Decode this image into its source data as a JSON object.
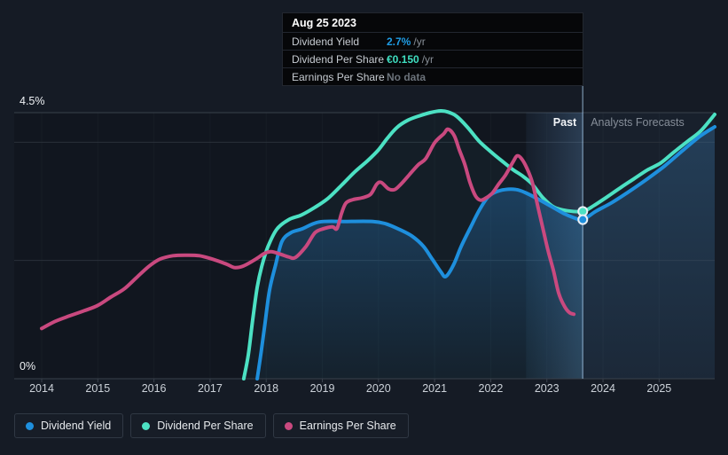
{
  "tooltip": {
    "date": "Aug 25 2023",
    "rows": [
      {
        "label": "Dividend Yield",
        "value": "2.7%",
        "suffix": "/yr",
        "value_color": "#1f9ce4"
      },
      {
        "label": "Dividend Per Share",
        "value": "€0.150",
        "suffix": "/yr",
        "value_color": "#3fdfc1"
      },
      {
        "label": "Earnings Per Share",
        "value": "No data",
        "suffix": "",
        "value_color": "#6b727a"
      }
    ]
  },
  "chart": {
    "past_label": "Past",
    "forecast_label": "Analysts Forecasts",
    "y_axis_top_label": "4.5%",
    "y_axis_bottom_label": "0%"
  },
  "legend": {
    "items": [
      {
        "label": "Dividend Yield"
      },
      {
        "label": "Dividend Per Share"
      },
      {
        "label": "Earnings Per Share"
      }
    ]
  },
  "colors": {
    "background": "#151b25",
    "plot_background": "#11161f",
    "forecast_background": "#18202c",
    "dividend_yield": "#1e8fdd",
    "dividend_per_share": "#4ce1c3",
    "earnings_per_share": "#c9497f",
    "gridline_strong": "#39414b",
    "gridline": "#2a303a",
    "axis_text": "#ccd2d9",
    "forecast_text": "#868e99"
  },
  "chart_data": {
    "type": "line",
    "title": "Dividend history and forecast with earnings per share",
    "x_ticks": [
      2014,
      2015,
      2016,
      2017,
      2018,
      2019,
      2020,
      2021,
      2022,
      2023,
      2024,
      2025
    ],
    "x_range": [
      2013.51,
      2025.99
    ],
    "y_axis": {
      "min": 0,
      "max": 4.5,
      "top_label": "4.5%",
      "bottom_label": "0%",
      "gridlines_pct": [
        4.5,
        4.0,
        2.0
      ]
    },
    "past_forecast_divider_year": 2023.64,
    "highlight_band": {
      "from_year": 2022.63,
      "to_year": 2023.64
    },
    "marker": {
      "date": "Aug 25 2023",
      "year": 2023.64,
      "dividend_yield_pct": 2.69,
      "dividend_per_share_eur": 0.15,
      "dividend_per_share_plot_pct": 2.83,
      "earnings_per_share": "No data"
    },
    "series": [
      {
        "name": "Dividend Yield",
        "color": "#1e8fdd",
        "unit": "percent",
        "points": [
          [
            2017.84,
            0
          ],
          [
            2017.91,
            0.45
          ],
          [
            2017.98,
            0.95
          ],
          [
            2018.06,
            1.5
          ],
          [
            2018.16,
            1.9
          ],
          [
            2018.28,
            2.32
          ],
          [
            2018.44,
            2.47
          ],
          [
            2018.63,
            2.53
          ],
          [
            2018.94,
            2.65
          ],
          [
            2019.4,
            2.66
          ],
          [
            2019.9,
            2.66
          ],
          [
            2020.13,
            2.62
          ],
          [
            2020.36,
            2.53
          ],
          [
            2020.6,
            2.41
          ],
          [
            2020.8,
            2.24
          ],
          [
            2020.96,
            2.02
          ],
          [
            2021.11,
            1.81
          ],
          [
            2021.2,
            1.73
          ],
          [
            2021.34,
            1.93
          ],
          [
            2021.47,
            2.23
          ],
          [
            2021.63,
            2.54
          ],
          [
            2021.79,
            2.84
          ],
          [
            2021.94,
            3.06
          ],
          [
            2022.07,
            3.15
          ],
          [
            2022.26,
            3.2
          ],
          [
            2022.45,
            3.2
          ],
          [
            2022.61,
            3.15
          ],
          [
            2022.82,
            3.05
          ],
          [
            2023.05,
            2.93
          ],
          [
            2023.29,
            2.8
          ],
          [
            2023.49,
            2.72
          ],
          [
            2023.64,
            2.69
          ],
          [
            2023.87,
            2.83
          ],
          [
            2024.16,
            2.98
          ],
          [
            2024.47,
            3.17
          ],
          [
            2024.79,
            3.38
          ],
          [
            2025.1,
            3.6
          ],
          [
            2025.42,
            3.86
          ],
          [
            2025.74,
            4.11
          ],
          [
            2025.99,
            4.26
          ]
        ]
      },
      {
        "name": "Dividend Per Share",
        "color": "#4ce1c3",
        "unit": "plot_percent_scale",
        "points": [
          [
            2017.6,
            0
          ],
          [
            2017.68,
            0.4
          ],
          [
            2017.76,
            1.0
          ],
          [
            2017.84,
            1.55
          ],
          [
            2017.92,
            1.9
          ],
          [
            2018.03,
            2.23
          ],
          [
            2018.19,
            2.53
          ],
          [
            2018.4,
            2.69
          ],
          [
            2018.63,
            2.77
          ],
          [
            2018.87,
            2.9
          ],
          [
            2019.1,
            3.05
          ],
          [
            2019.34,
            3.27
          ],
          [
            2019.58,
            3.5
          ],
          [
            2019.81,
            3.69
          ],
          [
            2020.0,
            3.87
          ],
          [
            2020.16,
            4.07
          ],
          [
            2020.33,
            4.25
          ],
          [
            2020.52,
            4.37
          ],
          [
            2020.71,
            4.44
          ],
          [
            2020.92,
            4.5
          ],
          [
            2021.11,
            4.53
          ],
          [
            2021.24,
            4.51
          ],
          [
            2021.39,
            4.44
          ],
          [
            2021.58,
            4.26
          ],
          [
            2021.79,
            4.02
          ],
          [
            2022.0,
            3.84
          ],
          [
            2022.19,
            3.69
          ],
          [
            2022.39,
            3.54
          ],
          [
            2022.58,
            3.42
          ],
          [
            2022.74,
            3.29
          ],
          [
            2022.93,
            3.06
          ],
          [
            2023.13,
            2.9
          ],
          [
            2023.37,
            2.84
          ],
          [
            2023.64,
            2.83
          ],
          [
            2023.84,
            2.93
          ],
          [
            2024.08,
            3.08
          ],
          [
            2024.31,
            3.23
          ],
          [
            2024.55,
            3.38
          ],
          [
            2024.79,
            3.53
          ],
          [
            2025.03,
            3.65
          ],
          [
            2025.26,
            3.83
          ],
          [
            2025.5,
            4.01
          ],
          [
            2025.74,
            4.19
          ],
          [
            2025.99,
            4.47
          ]
        ]
      },
      {
        "name": "Earnings Per Share",
        "color": "#c9497f",
        "unit": "plot_percent_scale",
        "points": [
          [
            2014.0,
            0.85
          ],
          [
            2014.24,
            0.97
          ],
          [
            2014.49,
            1.06
          ],
          [
            2014.76,
            1.15
          ],
          [
            2015.0,
            1.24
          ],
          [
            2015.23,
            1.38
          ],
          [
            2015.47,
            1.52
          ],
          [
            2015.71,
            1.73
          ],
          [
            2015.91,
            1.9
          ],
          [
            2016.1,
            2.02
          ],
          [
            2016.34,
            2.08
          ],
          [
            2016.58,
            2.09
          ],
          [
            2016.81,
            2.08
          ],
          [
            2017.05,
            2.02
          ],
          [
            2017.29,
            1.94
          ],
          [
            2017.44,
            1.88
          ],
          [
            2017.6,
            1.91
          ],
          [
            2017.81,
            2.02
          ],
          [
            2017.97,
            2.12
          ],
          [
            2018.09,
            2.15
          ],
          [
            2018.24,
            2.11
          ],
          [
            2018.4,
            2.06
          ],
          [
            2018.52,
            2.05
          ],
          [
            2018.71,
            2.24
          ],
          [
            2018.87,
            2.47
          ],
          [
            2019.03,
            2.54
          ],
          [
            2019.18,
            2.57
          ],
          [
            2019.26,
            2.54
          ],
          [
            2019.34,
            2.79
          ],
          [
            2019.42,
            2.97
          ],
          [
            2019.55,
            3.03
          ],
          [
            2019.71,
            3.06
          ],
          [
            2019.86,
            3.12
          ],
          [
            2019.97,
            3.29
          ],
          [
            2020.05,
            3.32
          ],
          [
            2020.18,
            3.21
          ],
          [
            2020.29,
            3.2
          ],
          [
            2020.4,
            3.29
          ],
          [
            2020.55,
            3.45
          ],
          [
            2020.71,
            3.62
          ],
          [
            2020.84,
            3.72
          ],
          [
            2021.0,
            3.99
          ],
          [
            2021.16,
            4.14
          ],
          [
            2021.24,
            4.22
          ],
          [
            2021.35,
            4.11
          ],
          [
            2021.44,
            3.87
          ],
          [
            2021.54,
            3.62
          ],
          [
            2021.63,
            3.32
          ],
          [
            2021.73,
            3.09
          ],
          [
            2021.82,
            3.02
          ],
          [
            2021.92,
            3.06
          ],
          [
            2022.03,
            3.14
          ],
          [
            2022.14,
            3.29
          ],
          [
            2022.26,
            3.44
          ],
          [
            2022.4,
            3.67
          ],
          [
            2022.47,
            3.77
          ],
          [
            2022.55,
            3.72
          ],
          [
            2022.64,
            3.57
          ],
          [
            2022.74,
            3.32
          ],
          [
            2022.85,
            2.87
          ],
          [
            2022.94,
            2.5
          ],
          [
            2023.02,
            2.17
          ],
          [
            2023.12,
            1.82
          ],
          [
            2023.21,
            1.45
          ],
          [
            2023.31,
            1.23
          ],
          [
            2023.4,
            1.12
          ],
          [
            2023.48,
            1.09
          ]
        ]
      }
    ]
  }
}
